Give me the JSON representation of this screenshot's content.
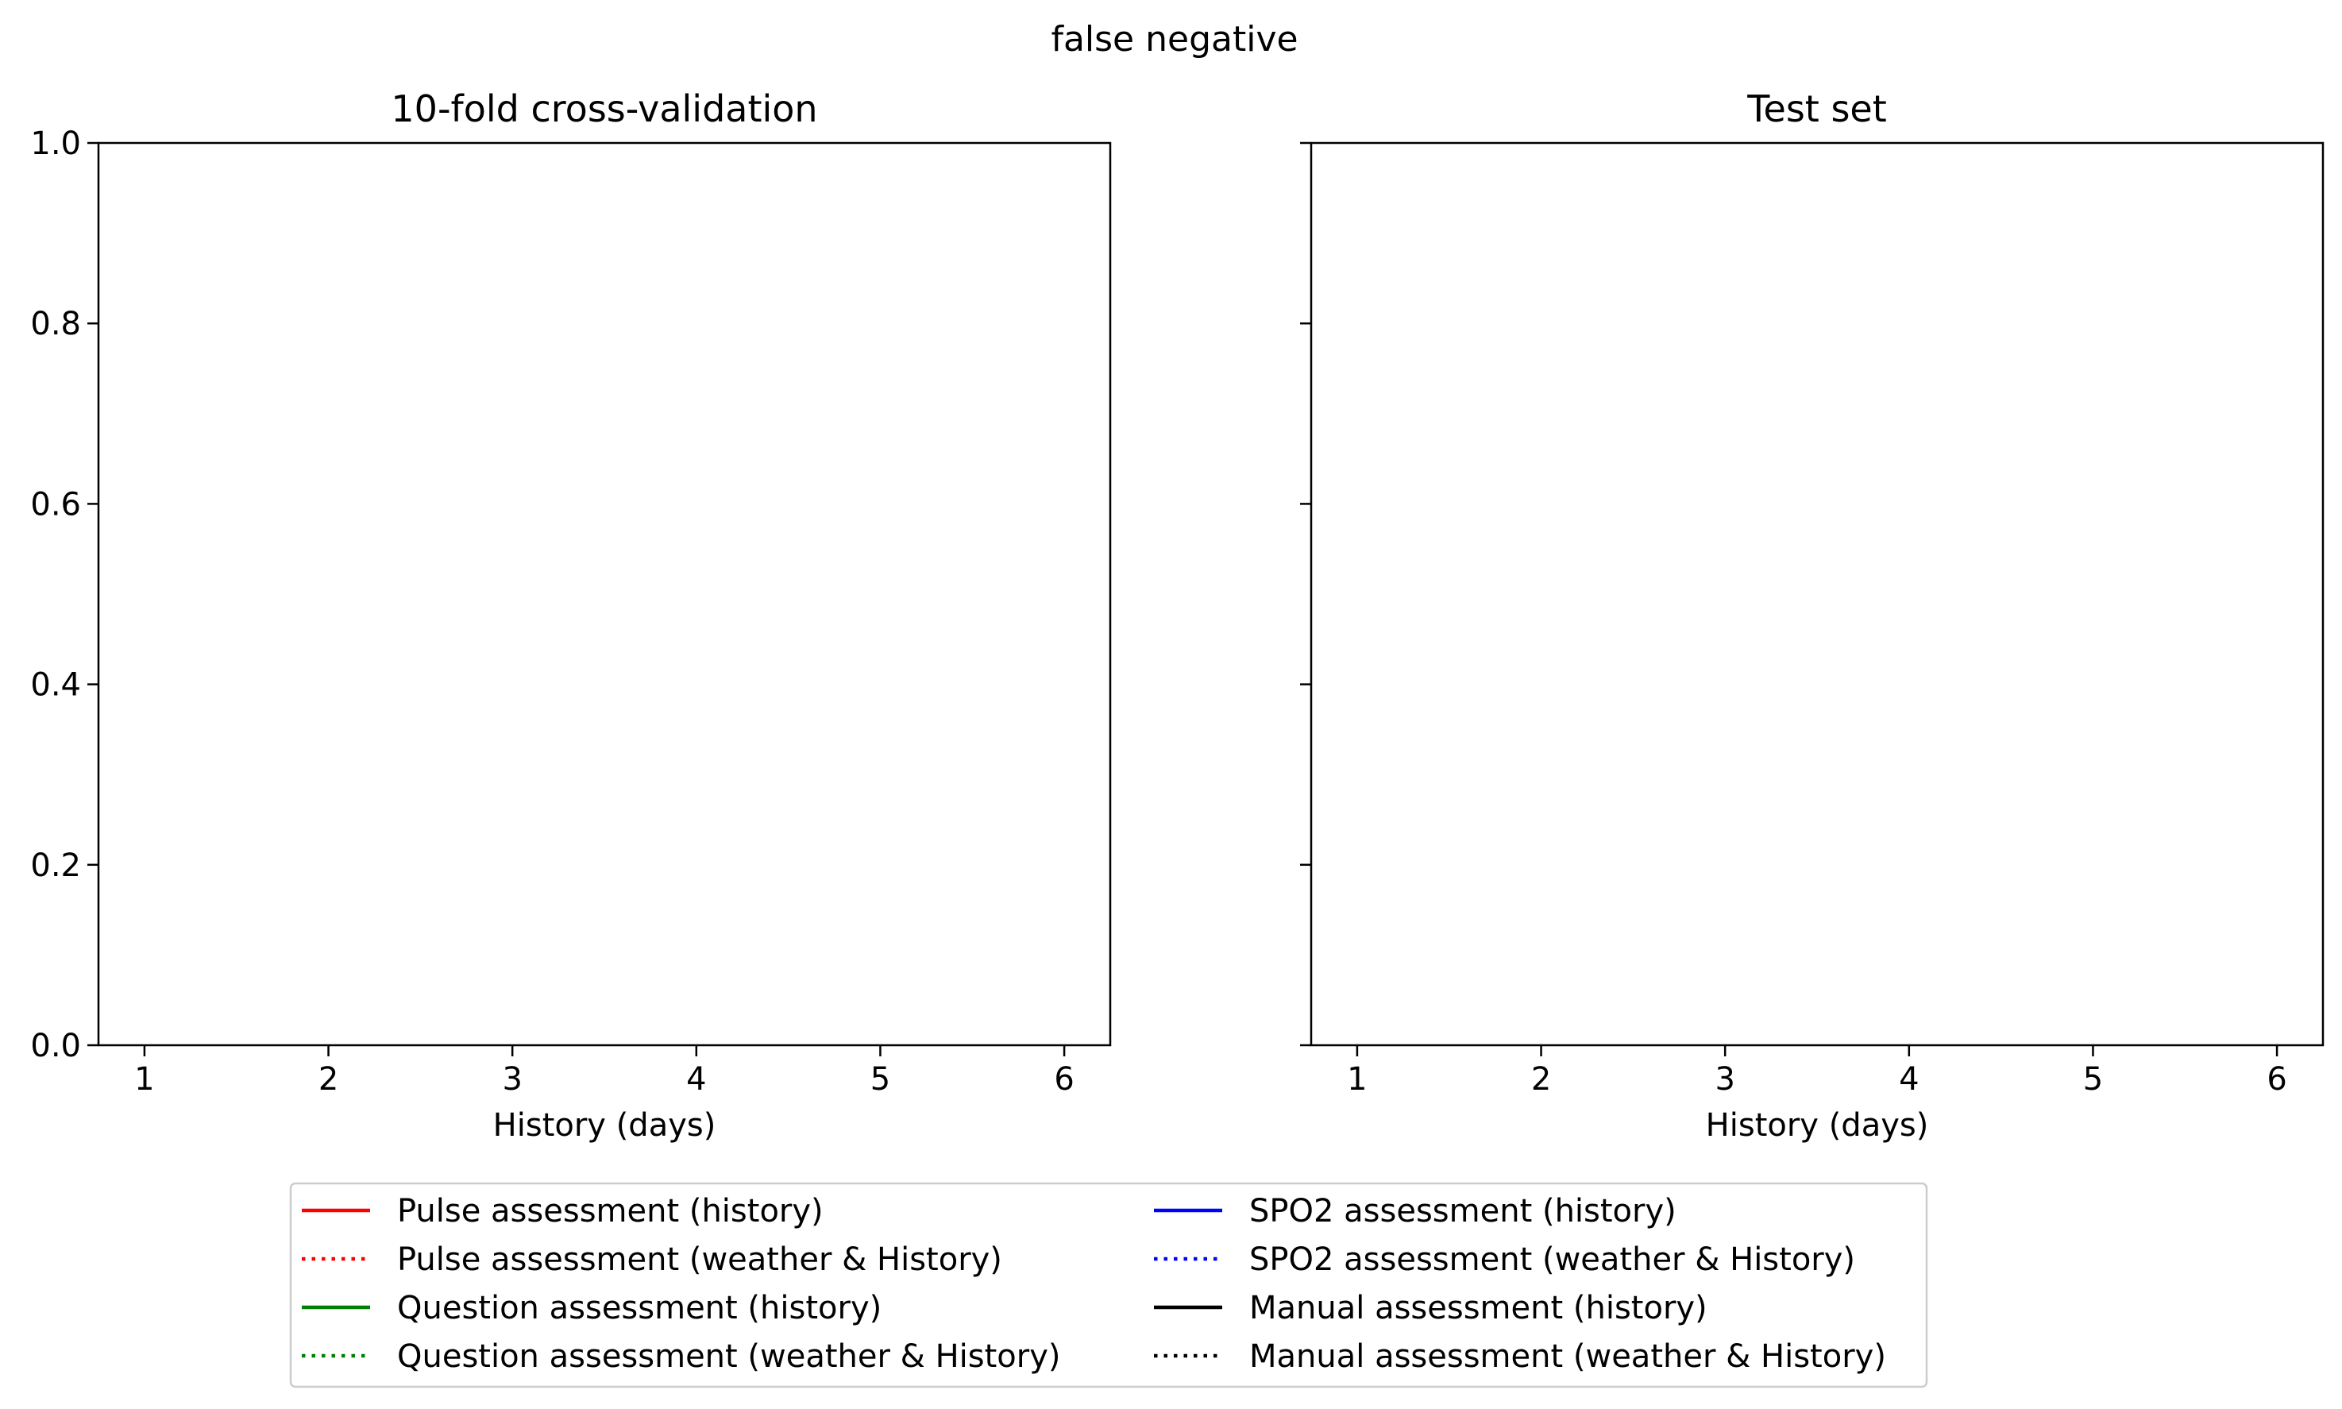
{
  "suptitle": "false negative",
  "chart_data": [
    {
      "type": "line",
      "title": "10-fold cross-validation",
      "xlabel": "History (days)",
      "ylabel": "",
      "xlim": [
        0.75,
        6.25
      ],
      "ylim": [
        0.0,
        1.0
      ],
      "xticks": [
        1,
        2,
        3,
        4,
        5,
        6
      ],
      "xtick_labels": [
        "1",
        "2",
        "3",
        "4",
        "5",
        "6"
      ],
      "yticks": [
        0.0,
        0.2,
        0.4,
        0.6,
        0.8,
        1.0
      ],
      "ytick_labels": [
        "0.0",
        "0.2",
        "0.4",
        "0.6",
        "0.8",
        "1.0"
      ],
      "show_ytick_labels": true,
      "grid": false,
      "series": []
    },
    {
      "type": "line",
      "title": "Test set",
      "xlabel": "History (days)",
      "ylabel": "",
      "xlim": [
        0.75,
        6.25
      ],
      "ylim": [
        0.0,
        1.0
      ],
      "xticks": [
        1,
        2,
        3,
        4,
        5,
        6
      ],
      "xtick_labels": [
        "1",
        "2",
        "3",
        "4",
        "5",
        "6"
      ],
      "yticks": [
        0.0,
        0.2,
        0.4,
        0.6,
        0.8,
        1.0
      ],
      "ytick_labels": [
        "0.0",
        "0.2",
        "0.4",
        "0.6",
        "0.8",
        "1.0"
      ],
      "show_ytick_labels": false,
      "grid": false,
      "series": []
    }
  ],
  "legend": {
    "placement": "bottom-center",
    "columns": 2,
    "entries": [
      {
        "label": "Pulse assessment (history)",
        "color": "#ff0000",
        "style": "solid"
      },
      {
        "label": "Pulse assessment (weather & History)",
        "color": "#ff0000",
        "style": "dotted"
      },
      {
        "label": "Question assessment (history)",
        "color": "#008000",
        "style": "solid"
      },
      {
        "label": "Question assessment (weather & History)",
        "color": "#008000",
        "style": "dotted"
      },
      {
        "label": "SPO2 assessment (history)",
        "color": "#0000ff",
        "style": "solid"
      },
      {
        "label": "SPO2 assessment (weather & History)",
        "color": "#0000ff",
        "style": "dotted"
      },
      {
        "label": "Manual assessment (history)",
        "color": "#000000",
        "style": "solid"
      },
      {
        "label": "Manual assessment (weather & History)",
        "color": "#000000",
        "style": "dotted"
      }
    ]
  }
}
